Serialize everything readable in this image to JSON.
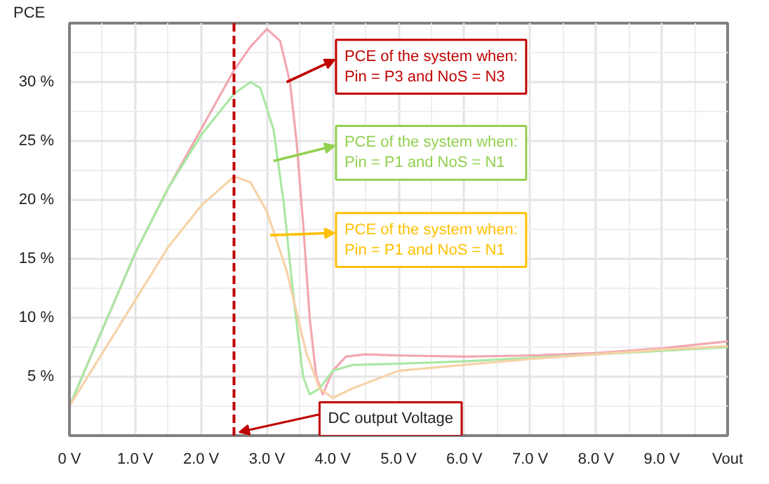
{
  "chart_data": {
    "type": "line",
    "ylabel": "PCE",
    "xlabel": "Vout",
    "xlim": [
      0,
      10
    ],
    "ylim": [
      0,
      35
    ],
    "xticks": [
      {
        "value": 0,
        "label": "0 V"
      },
      {
        "value": 1,
        "label": "1.0 V"
      },
      {
        "value": 2,
        "label": "2.0 V"
      },
      {
        "value": 3,
        "label": "3.0 V"
      },
      {
        "value": 4,
        "label": "4.0 V"
      },
      {
        "value": 5,
        "label": "5.0 V"
      },
      {
        "value": 6,
        "label": "6.0 V"
      },
      {
        "value": 7,
        "label": "7.0 V"
      },
      {
        "value": 8,
        "label": "8.0 V"
      },
      {
        "value": 9,
        "label": "9.0 V"
      }
    ],
    "yticks": [
      {
        "value": 5,
        "label": "5 %"
      },
      {
        "value": 10,
        "label": "10 %"
      },
      {
        "value": 15,
        "label": "15 %"
      },
      {
        "value": 20,
        "label": "20 %"
      },
      {
        "value": 25,
        "label": "25 %"
      },
      {
        "value": 30,
        "label": "30 %"
      }
    ],
    "grid": true,
    "series": [
      {
        "color": "#f2a7b0",
        "x": [
          0,
          0.5,
          1,
          1.5,
          2,
          2.5,
          2.75,
          3.0,
          3.2,
          3.35,
          3.45,
          3.55,
          3.65,
          3.75,
          3.85,
          4.0,
          4.2,
          4.5,
          5,
          6,
          7,
          8,
          9,
          10
        ],
        "values": [
          2.5,
          9,
          15.5,
          21,
          26,
          31,
          33,
          34.5,
          33.5,
          30,
          25,
          18,
          10,
          5,
          3.5,
          5.5,
          6.7,
          6.9,
          6.8,
          6.7,
          6.8,
          7,
          7.4,
          8
        ]
      },
      {
        "color": "#a9e8a3",
        "x": [
          0,
          0.5,
          1,
          1.5,
          2,
          2.5,
          2.75,
          2.9,
          3.1,
          3.25,
          3.4,
          3.55,
          3.65,
          3.8,
          4.0,
          4.3,
          5,
          6,
          7,
          8,
          9,
          10
        ],
        "values": [
          2.5,
          9,
          15.5,
          21,
          25.5,
          29,
          30,
          29.5,
          26,
          20,
          12,
          5,
          3.5,
          4,
          5.5,
          6,
          6.1,
          6.3,
          6.6,
          6.9,
          7.2,
          7.5
        ]
      },
      {
        "color": "#f7d2a8",
        "x": [
          0,
          0.5,
          1,
          1.5,
          2,
          2.5,
          2.75,
          3.0,
          3.3,
          3.6,
          3.8,
          4.0,
          4.3,
          5,
          6,
          7,
          8,
          9,
          10
        ],
        "values": [
          2.5,
          7,
          11.5,
          16,
          19.5,
          22,
          21.5,
          19,
          14,
          7,
          4,
          3.2,
          4,
          5.5,
          6,
          6.5,
          6.9,
          7.3,
          7.6
        ]
      }
    ],
    "ref_lines": [
      {
        "axis": "x",
        "value": 2.5,
        "label": "DC output Voltage",
        "color": "#c00000",
        "line_style": "dashed"
      }
    ],
    "annotations": [
      {
        "text": "PCE of the system when:\nPin = P3 and NoS = N3",
        "x": 3.3,
        "y": 30
      },
      {
        "text": "PCE of the system when:\nPin = P1 and NoS = N1",
        "x": 3.1,
        "y": 23.3
      },
      {
        "text": "PCE of the system when:\nPin = P1 and NoS = N1",
        "x": 3.05,
        "y": 17
      }
    ]
  }
}
